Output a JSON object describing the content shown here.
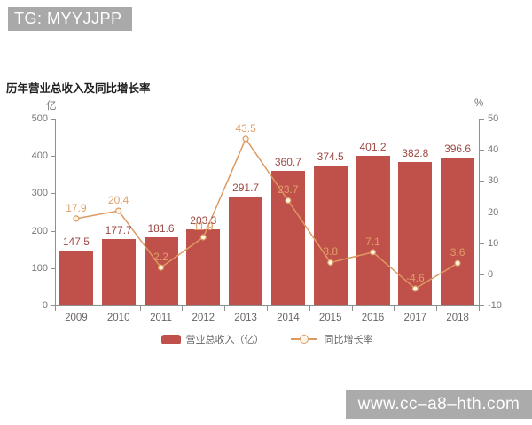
{
  "badge": {
    "text": "TG: MYYJJPP"
  },
  "watermark": {
    "text": "www.cc–a8–hth.com"
  },
  "colors": {
    "bar": "#c0504a",
    "bar_label": "#9e4944",
    "line": "#dc9a62",
    "line_label": "#df9f68",
    "marker_fill": "#fdf5e6",
    "axis": "#8f8f8f",
    "tick_label": "#757575",
    "category_label": "#666666"
  },
  "chart_data": {
    "type": "bar",
    "title": "历年营业总收入及同比增长率",
    "categories": [
      "2009",
      "2010",
      "2011",
      "2012",
      "2013",
      "2014",
      "2015",
      "2016",
      "2017",
      "2018"
    ],
    "series": [
      {
        "name": "营业总收入（亿）",
        "type": "bar",
        "axis": "left",
        "color": "#c0504a",
        "values": [
          147.5,
          177.7,
          181.6,
          203.3,
          291.7,
          360.7,
          374.5,
          401.2,
          382.8,
          396.6
        ]
      },
      {
        "name": "同比增长率",
        "type": "line",
        "axis": "right",
        "color": "#dc9a62",
        "values": [
          17.9,
          20.4,
          2.2,
          11.9,
          43.5,
          23.7,
          3.8,
          7.1,
          -4.6,
          3.6
        ]
      }
    ],
    "left_axis": {
      "unit": "亿",
      "min": 0,
      "max": 500,
      "ticks": [
        0,
        100,
        200,
        300,
        400,
        500
      ]
    },
    "right_axis": {
      "unit": "%",
      "min": -10,
      "max": 50,
      "ticks": [
        -10,
        0,
        10,
        20,
        30,
        40,
        50
      ]
    },
    "grid": false,
    "legend_position": "bottom"
  }
}
